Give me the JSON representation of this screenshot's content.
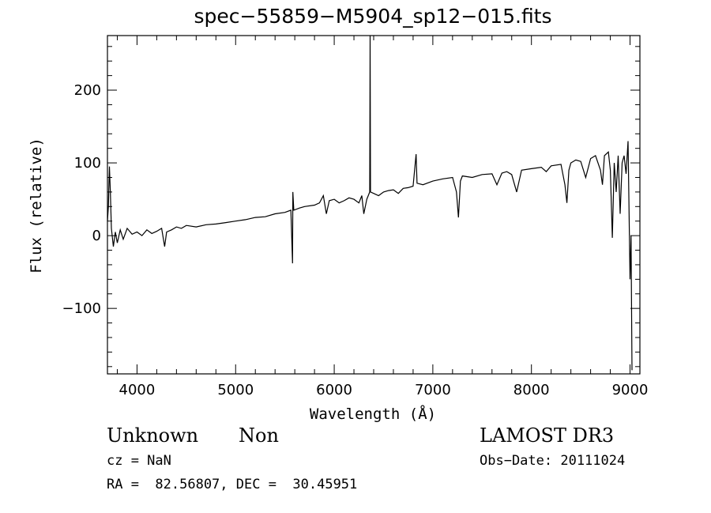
{
  "chart_data": {
    "type": "line",
    "title": "spec−55859−M5904_sp12−015.fits",
    "xlabel": "Wavelength (Å)",
    "ylabel": "Flux (relative)",
    "xlim": [
      3700,
      9100
    ],
    "ylim": [
      -190,
      275
    ],
    "xticks": [
      4000,
      5000,
      6000,
      7000,
      8000,
      9000
    ],
    "xtick_labels": [
      "4000",
      "5000",
      "6000",
      "7000",
      "8000",
      "9000"
    ],
    "yticks": [
      -100,
      0,
      100,
      200
    ],
    "ytick_labels": [
      "−100",
      "0",
      "100",
      "200"
    ],
    "grid": false,
    "series": [
      {
        "values_note_free": true,
        "points": [
          [
            3700,
            20
          ],
          [
            3710,
            40
          ],
          [
            3720,
            95
          ],
          [
            3730,
            60
          ],
          [
            3740,
            10
          ],
          [
            3760,
            -15
          ],
          [
            3780,
            5
          ],
          [
            3800,
            -10
          ],
          [
            3830,
            8
          ],
          [
            3860,
            -5
          ],
          [
            3900,
            10
          ],
          [
            3950,
            2
          ],
          [
            4000,
            5
          ],
          [
            4050,
            0
          ],
          [
            4100,
            8
          ],
          [
            4150,
            3
          ],
          [
            4200,
            6
          ],
          [
            4250,
            10
          ],
          [
            4280,
            -15
          ],
          [
            4300,
            5
          ],
          [
            4350,
            8
          ],
          [
            4400,
            12
          ],
          [
            4450,
            10
          ],
          [
            4500,
            14
          ],
          [
            4600,
            12
          ],
          [
            4700,
            15
          ],
          [
            4800,
            16
          ],
          [
            4900,
            18
          ],
          [
            5000,
            20
          ],
          [
            5100,
            22
          ],
          [
            5200,
            25
          ],
          [
            5300,
            26
          ],
          [
            5400,
            30
          ],
          [
            5500,
            32
          ],
          [
            5560,
            35
          ],
          [
            5577,
            -38
          ],
          [
            5580,
            60
          ],
          [
            5590,
            35
          ],
          [
            5650,
            38
          ],
          [
            5700,
            40
          ],
          [
            5800,
            42
          ],
          [
            5850,
            45
          ],
          [
            5890,
            55
          ],
          [
            5920,
            30
          ],
          [
            5950,
            48
          ],
          [
            6000,
            50
          ],
          [
            6050,
            45
          ],
          [
            6100,
            48
          ],
          [
            6150,
            52
          ],
          [
            6200,
            50
          ],
          [
            6250,
            45
          ],
          [
            6280,
            55
          ],
          [
            6300,
            30
          ],
          [
            6330,
            50
          ],
          [
            6360,
            60
          ],
          [
            6364,
            275
          ],
          [
            6368,
            60
          ],
          [
            6400,
            58
          ],
          [
            6450,
            55
          ],
          [
            6500,
            60
          ],
          [
            6550,
            62
          ],
          [
            6600,
            63
          ],
          [
            6650,
            58
          ],
          [
            6700,
            65
          ],
          [
            6750,
            66
          ],
          [
            6800,
            68
          ],
          [
            6830,
            112
          ],
          [
            6840,
            72
          ],
          [
            6900,
            70
          ],
          [
            7000,
            75
          ],
          [
            7100,
            78
          ],
          [
            7200,
            80
          ],
          [
            7240,
            60
          ],
          [
            7260,
            25
          ],
          [
            7280,
            75
          ],
          [
            7300,
            82
          ],
          [
            7400,
            80
          ],
          [
            7500,
            84
          ],
          [
            7600,
            85
          ],
          [
            7650,
            70
          ],
          [
            7700,
            86
          ],
          [
            7750,
            88
          ],
          [
            7800,
            84
          ],
          [
            7850,
            60
          ],
          [
            7900,
            90
          ],
          [
            8000,
            92
          ],
          [
            8100,
            94
          ],
          [
            8150,
            88
          ],
          [
            8200,
            96
          ],
          [
            8300,
            98
          ],
          [
            8340,
            70
          ],
          [
            8360,
            45
          ],
          [
            8380,
            90
          ],
          [
            8400,
            100
          ],
          [
            8450,
            104
          ],
          [
            8500,
            102
          ],
          [
            8550,
            80
          ],
          [
            8600,
            106
          ],
          [
            8650,
            110
          ],
          [
            8700,
            90
          ],
          [
            8720,
            70
          ],
          [
            8740,
            110
          ],
          [
            8780,
            115
          ],
          [
            8800,
            90
          ],
          [
            8820,
            -3
          ],
          [
            8840,
            100
          ],
          [
            8860,
            60
          ],
          [
            8880,
            110
          ],
          [
            8900,
            30
          ],
          [
            8920,
            100
          ],
          [
            8940,
            110
          ],
          [
            8960,
            85
          ],
          [
            8980,
            130
          ],
          [
            9000,
            -60
          ],
          [
            9010,
            0
          ],
          [
            9020,
            -185
          ]
        ]
      }
    ]
  },
  "info": {
    "object_class": "Unknown",
    "subclass": "Non",
    "survey": "LAMOST DR3",
    "cz": "cz = NaN",
    "obs_date": "Obs−Date: 20111024",
    "coords": "RA =  82.56807, DEC =  30.45951"
  }
}
